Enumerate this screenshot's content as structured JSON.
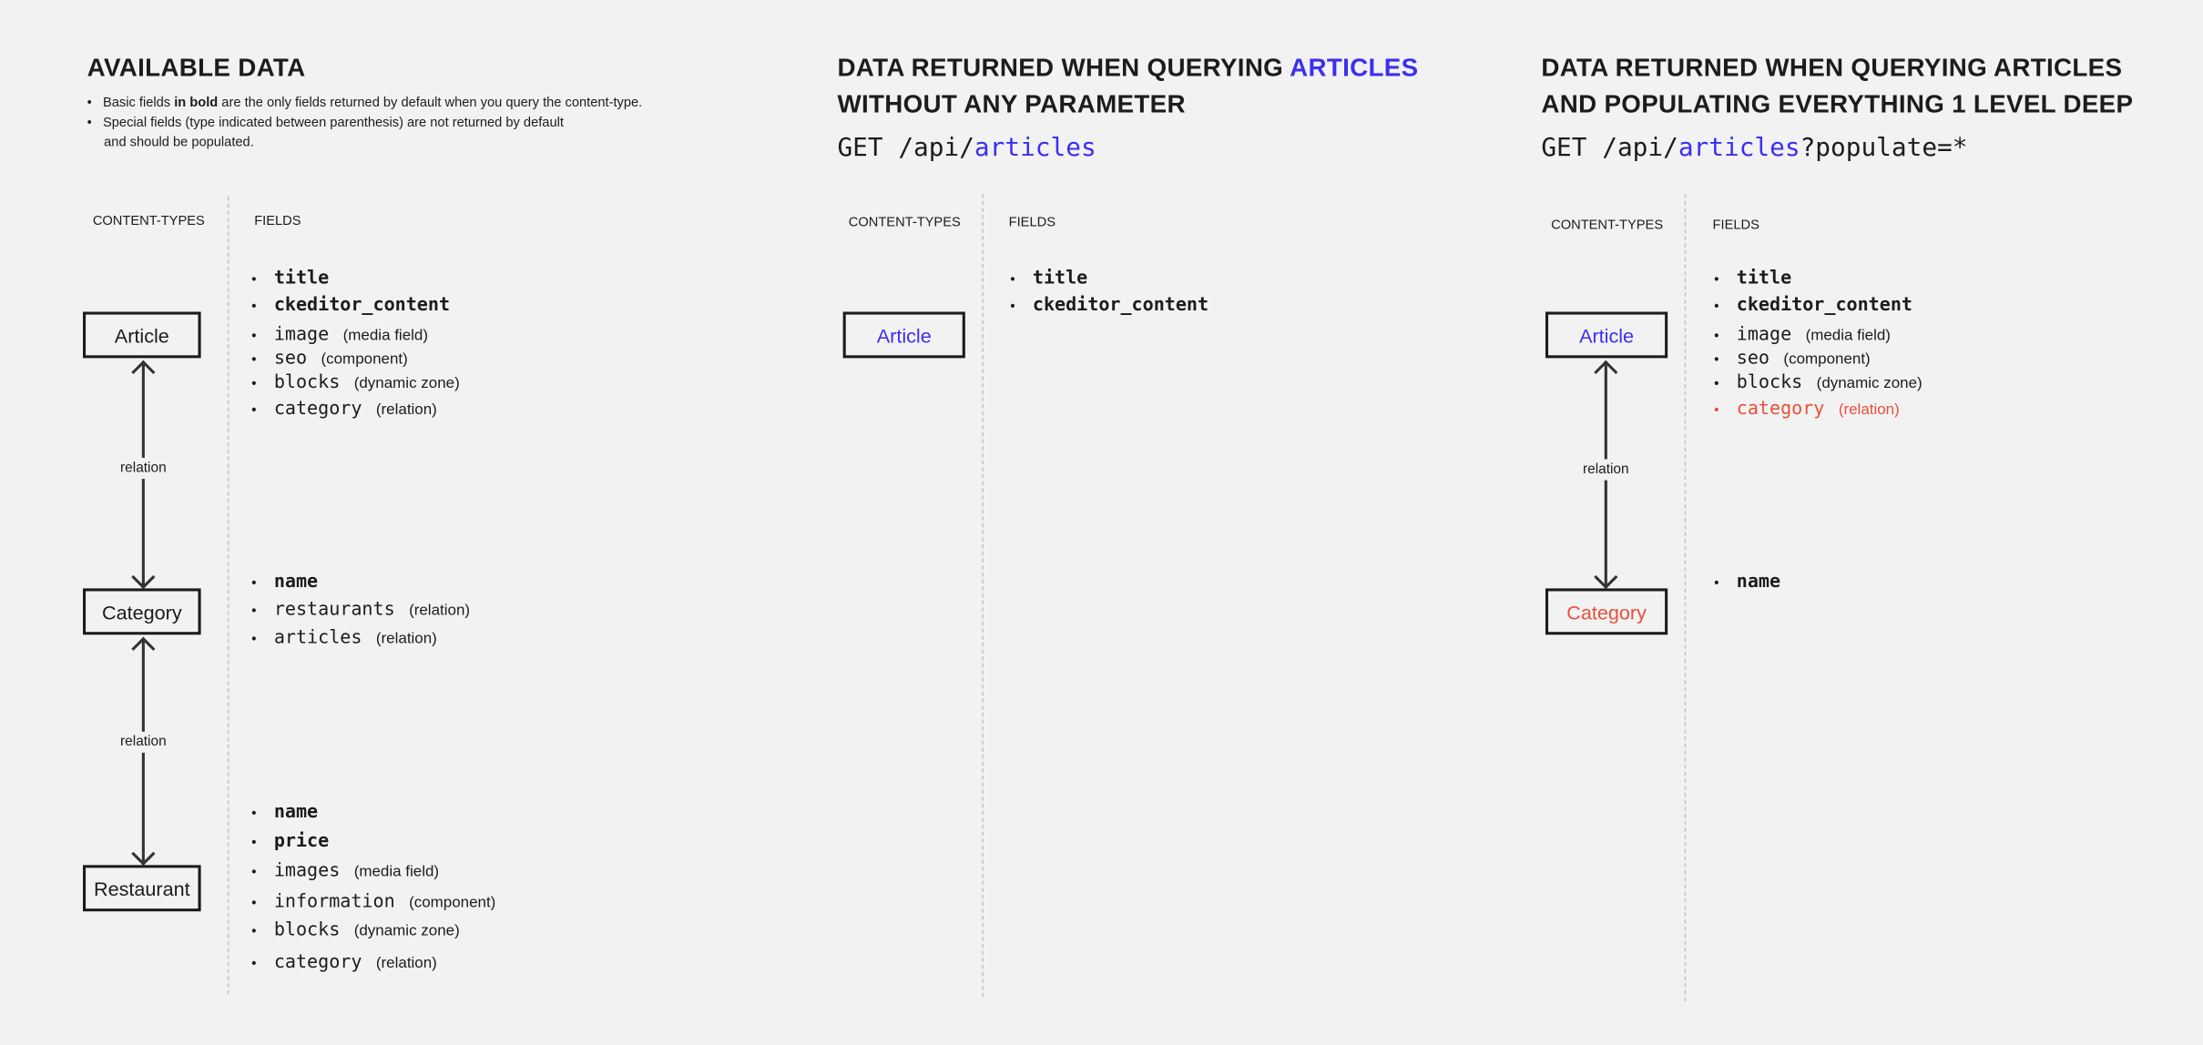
{
  "colors": {
    "accent_blue": "#3d2ff0",
    "highlight_red": "#e8503a",
    "background": "#f2f2f2"
  },
  "panel1": {
    "title": "AVAILABLE DATA",
    "notes": [
      {
        "pre": "Basic fields ",
        "bold": "in bold",
        "post": " are the only fields returned by default when you query the content-type."
      },
      {
        "pre": "Special fields (type indicated between parenthesis) are not returned by default",
        "bold": "",
        "post": ""
      },
      {
        "pre": "and should be populated.",
        "bold": "",
        "post": ""
      }
    ],
    "header_types": "CONTENT-TYPES",
    "header_fields": "FIELDS",
    "types": [
      "Article",
      "Category",
      "Restaurant"
    ],
    "relation_label": "relation",
    "article_fields": [
      {
        "name": "title",
        "bold": true
      },
      {
        "name": "ckeditor_content",
        "bold": true
      },
      {
        "name": "image",
        "type": "(media field)"
      },
      {
        "name": "seo",
        "type": "(component)"
      },
      {
        "name": "blocks",
        "type": "(dynamic zone)"
      },
      {
        "name": "category",
        "type": "(relation)"
      }
    ],
    "category_fields": [
      {
        "name": "name",
        "bold": true
      },
      {
        "name": "restaurants",
        "type": "(relation)"
      },
      {
        "name": "articles",
        "type": "(relation)"
      }
    ],
    "restaurant_fields": [
      {
        "name": "name",
        "bold": true
      },
      {
        "name": "price",
        "bold": true
      },
      {
        "name": "images",
        "type": "(media field)"
      },
      {
        "name": "information",
        "type": "(component)"
      },
      {
        "name": "blocks",
        "type": "(dynamic zone)"
      },
      {
        "name": "category",
        "type": "(relation)"
      }
    ]
  },
  "panel2": {
    "title_line1_pre": "DATA RETURNED WHEN QUERYING ",
    "title_line1_hl": "ARTICLES",
    "title_line2": "WITHOUT ANY PARAMETER",
    "get_method": "GET",
    "get_path": " /api/",
    "get_resource": "articles",
    "header_types": "CONTENT-TYPES",
    "header_fields": "FIELDS",
    "type": "Article",
    "article_fields": [
      {
        "name": "title",
        "bold": true
      },
      {
        "name": "ckeditor_content",
        "bold": true
      }
    ]
  },
  "panel3": {
    "title_line1": "DATA RETURNED WHEN QUERYING ARTICLES",
    "title_line2": "AND POPULATING EVERYTHING 1 LEVEL DEEP",
    "get_method": "GET",
    "get_path": " /api/",
    "get_resource": "articles",
    "get_query": "?populate=*",
    "header_types": "CONTENT-TYPES",
    "header_fields": "FIELDS",
    "types": [
      "Article",
      "Category"
    ],
    "relation_label": "relation",
    "article_fields": [
      {
        "name": "title",
        "bold": true
      },
      {
        "name": "ckeditor_content",
        "bold": true
      },
      {
        "name": "image",
        "type": "(media field)"
      },
      {
        "name": "seo",
        "type": "(component)"
      },
      {
        "name": "blocks",
        "type": "(dynamic zone)"
      },
      {
        "name": "category",
        "type": "(relation)",
        "highlight": true
      }
    ],
    "category_fields": [
      {
        "name": "name",
        "bold": true
      }
    ]
  }
}
